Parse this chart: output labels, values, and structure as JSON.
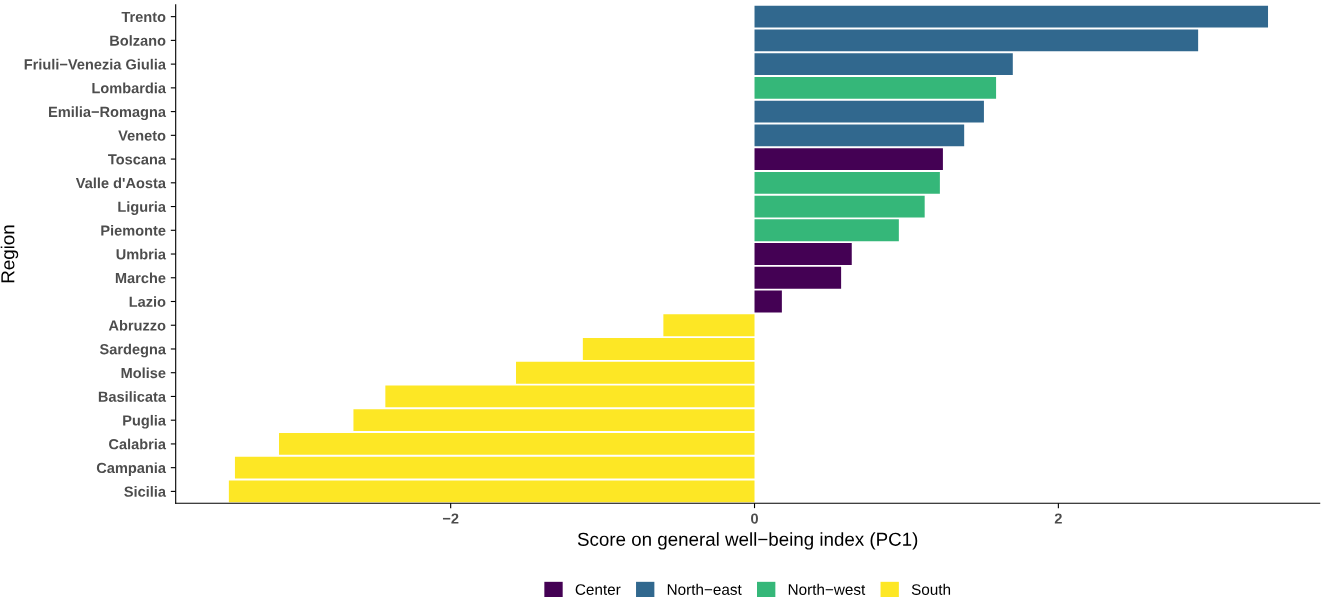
{
  "chart_data": {
    "type": "bar",
    "orientation": "horizontal",
    "xlabel": "Score on general well−being index (PC1)",
    "ylabel": "Region",
    "categories": [
      "Trento",
      "Bolzano",
      "Friuli−Venezia Giulia",
      "Lombardia",
      "Emilia−Romagna",
      "Veneto",
      "Toscana",
      "Valle d'Aosta",
      "Liguria",
      "Piemonte",
      "Umbria",
      "Marche",
      "Lazio",
      "Abruzzo",
      "Sardegna",
      "Molise",
      "Basilicata",
      "Puglia",
      "Calabria",
      "Campania",
      "Sicilia"
    ],
    "series": [
      {
        "name": "Center",
        "color": "#440154",
        "values": [
          null,
          null,
          null,
          null,
          null,
          null,
          1.24,
          null,
          null,
          null,
          0.64,
          0.57,
          0.18,
          null,
          null,
          null,
          null,
          null,
          null,
          null,
          null
        ]
      },
      {
        "name": "North−east",
        "color": "#31688e",
        "values": [
          3.38,
          2.92,
          1.7,
          null,
          1.51,
          1.38,
          null,
          null,
          null,
          null,
          null,
          null,
          null,
          null,
          null,
          null,
          null,
          null,
          null,
          null,
          null
        ]
      },
      {
        "name": "North−west",
        "color": "#35b779",
        "values": [
          null,
          null,
          null,
          1.59,
          null,
          null,
          null,
          1.22,
          1.12,
          0.95,
          null,
          null,
          null,
          null,
          null,
          null,
          null,
          null,
          null,
          null,
          null
        ]
      },
      {
        "name": "South",
        "color": "#fde725",
        "values": [
          null,
          null,
          null,
          null,
          null,
          null,
          null,
          null,
          null,
          null,
          null,
          null,
          null,
          -0.6,
          -1.13,
          -1.57,
          -2.43,
          -2.64,
          -3.13,
          -3.42,
          -3.46
        ]
      }
    ],
    "xlim": [
      -3.81,
      3.72
    ],
    "xticks": [
      {
        "value": -2,
        "label": "−2"
      },
      0,
      2
    ],
    "grid": false,
    "legend": "bottom"
  }
}
